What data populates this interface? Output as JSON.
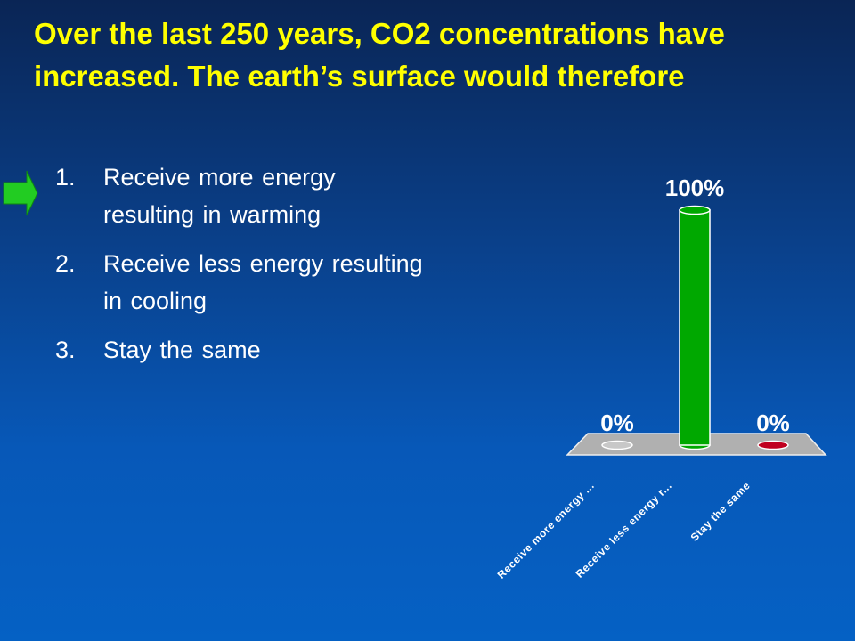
{
  "title": "Over the last 250 years, CO2 concentrations have increased.  The earth’s surface would therefore",
  "options": [
    {
      "number": "1.",
      "text": "Receive more energy resulting in warming"
    },
    {
      "number": "2.",
      "text": "Receive less energy resulting in cooling"
    },
    {
      "number": "3.",
      "text": "Stay the same"
    }
  ],
  "chart_data": {
    "type": "bar3d",
    "categories": [
      "Receive more energy ...",
      "Receive less energy r...",
      "Stay the same"
    ],
    "values": [
      0,
      100,
      0
    ],
    "value_labels": [
      "0%",
      "100%",
      "0%"
    ],
    "colors": [
      "#c8c8c8",
      "#00a800",
      "#c00020"
    ]
  }
}
